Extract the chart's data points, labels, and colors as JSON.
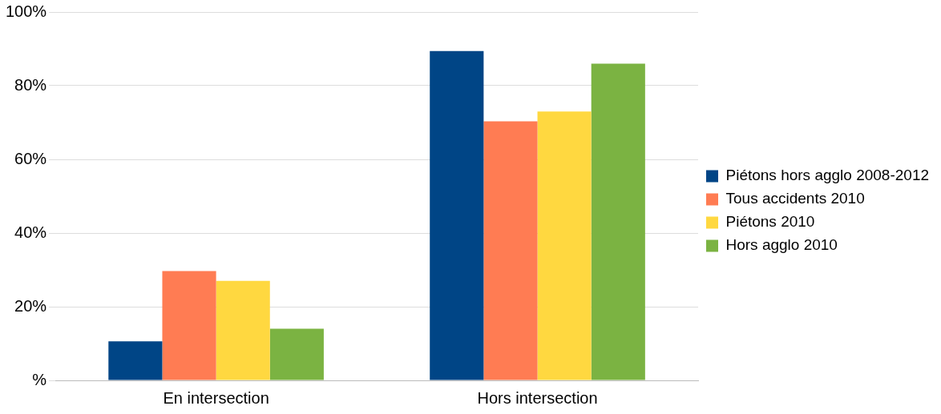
{
  "chart_data": {
    "type": "bar",
    "categories": [
      "En intersection",
      "Hors intersection"
    ],
    "series": [
      {
        "name": "Piétons hors agglo 2008-2012",
        "color": "#004586",
        "values": [
          10.6,
          89.4
        ]
      },
      {
        "name": "Tous accidents 2010",
        "color": "#ff7c53",
        "values": [
          29.7,
          70.3
        ]
      },
      {
        "name": "Piétons 2010",
        "color": "#ffd840",
        "values": [
          27,
          73
        ]
      },
      {
        "name": "Hors agglo 2010",
        "color": "#7bb342",
        "values": [
          14,
          86
        ]
      }
    ],
    "ylim": [
      0,
      100
    ],
    "yticks": [
      {
        "value": 0,
        "label": "%"
      },
      {
        "value": 20,
        "label": "20%"
      },
      {
        "value": 40,
        "label": "40%"
      },
      {
        "value": 60,
        "label": "60%"
      },
      {
        "value": 80,
        "label": "80%"
      },
      {
        "value": 100,
        "label": "100%"
      }
    ],
    "grid": "y",
    "legend": "right"
  }
}
